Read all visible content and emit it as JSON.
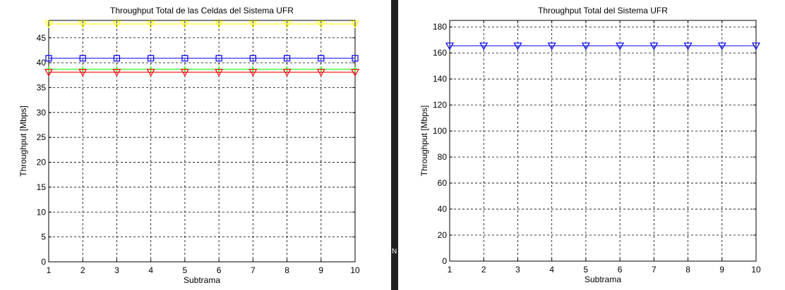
{
  "divider_glyph": "N",
  "chart_data": [
    {
      "type": "line",
      "title": "Throughput Total de las Celdas del Sistema UFR",
      "xlabel": "Subtrama",
      "ylabel": "Throughput [Mbps]",
      "x": [
        1,
        2,
        3,
        4,
        5,
        6,
        7,
        8,
        9,
        10
      ],
      "xlim": [
        1,
        10
      ],
      "ylim": [
        0,
        48.5
      ],
      "xticks": [
        1,
        2,
        3,
        4,
        5,
        6,
        7,
        8,
        9,
        10
      ],
      "yticks": [
        0,
        5,
        10,
        15,
        20,
        25,
        30,
        35,
        40,
        45
      ],
      "grid": true,
      "legend": "none",
      "series": [
        {
          "color": "#ffff00",
          "marker": "triangle-down",
          "values": [
            47.8,
            47.8,
            47.8,
            47.8,
            47.8,
            47.8,
            47.8,
            47.8,
            47.8,
            47.8
          ]
        },
        {
          "color": "#0000ff",
          "marker": "square",
          "values": [
            40.9,
            40.9,
            40.9,
            40.9,
            40.9,
            40.9,
            40.9,
            40.9,
            40.9,
            40.9
          ]
        },
        {
          "color": "#00ff00",
          "marker": "plus",
          "values": [
            38.7,
            38.7,
            38.7,
            38.7,
            38.7,
            38.7,
            38.7,
            38.7,
            38.7,
            38.7
          ]
        },
        {
          "color": "#ff0000",
          "marker": "triangle-down",
          "values": [
            38.1,
            38.1,
            38.1,
            38.1,
            38.1,
            38.1,
            38.1,
            38.1,
            38.1,
            38.1
          ]
        }
      ]
    },
    {
      "type": "line",
      "title": "Throughput Total del Sistema UFR",
      "xlabel": "Subtrama",
      "ylabel": "Throughput [Mbps]",
      "x": [
        1,
        2,
        3,
        4,
        5,
        6,
        7,
        8,
        9,
        10
      ],
      "xlim": [
        1,
        10
      ],
      "ylim": [
        0,
        185
      ],
      "xticks": [
        1,
        2,
        3,
        4,
        5,
        6,
        7,
        8,
        9,
        10
      ],
      "yticks": [
        0,
        20,
        40,
        60,
        80,
        100,
        120,
        140,
        160,
        180
      ],
      "grid": true,
      "legend": "none",
      "series": [
        {
          "color": "#0000ff",
          "marker": "triangle-down",
          "values": [
            165.5,
            165.5,
            165.5,
            165.5,
            165.5,
            165.5,
            165.5,
            165.5,
            165.5,
            165.5
          ]
        }
      ]
    }
  ]
}
